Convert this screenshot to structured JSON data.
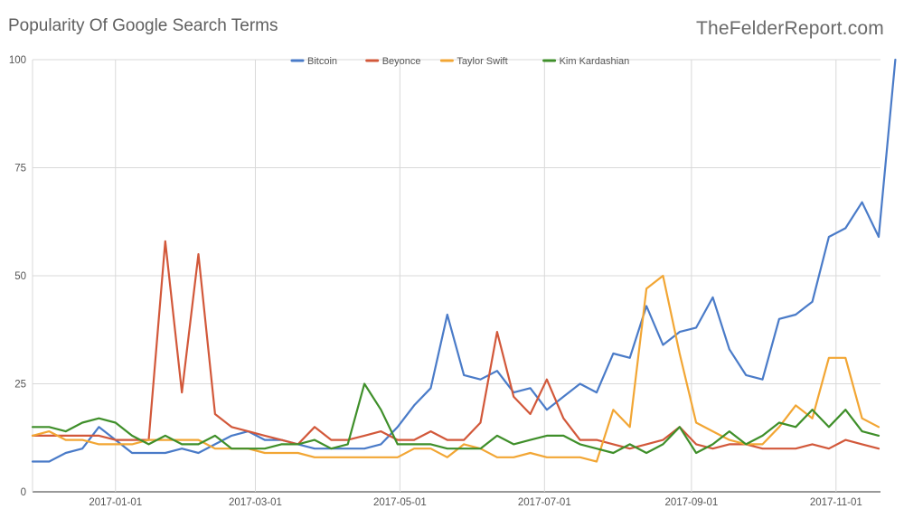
{
  "header": {
    "title": "Popularity Of Google Search Terms",
    "source": "TheFelderReport.com"
  },
  "chart_data": {
    "type": "line",
    "title": "Popularity Of Google Search Terms",
    "xlabel": "",
    "ylabel": "",
    "ylim": [
      0,
      100
    ],
    "yticks": [
      0,
      25,
      50,
      75,
      100
    ],
    "xtick_labels": [
      "2017-01-01",
      "2017-03-01",
      "2017-05-01",
      "2017-07-01",
      "2017-09-01",
      "2017-11-01"
    ],
    "x_start": "2016-11-27",
    "x_step_days": 7,
    "grid": true,
    "legend_position": "top-center",
    "series": [
      {
        "name": "Bitcoin",
        "color": "#4a7bc8",
        "values": [
          7,
          7,
          9,
          10,
          15,
          12,
          9,
          9,
          9,
          10,
          9,
          11,
          13,
          14,
          12,
          12,
          11,
          10,
          10,
          10,
          10,
          11,
          15,
          20,
          24,
          41,
          27,
          26,
          28,
          23,
          24,
          19,
          22,
          25,
          23,
          32,
          31,
          43,
          34,
          37,
          38,
          45,
          33,
          27,
          26,
          40,
          41,
          44,
          59,
          61,
          67,
          59,
          100
        ]
      },
      {
        "name": "Beyonce",
        "color": "#d2583a",
        "values": [
          13,
          13,
          13,
          13,
          13,
          12,
          12,
          12,
          58,
          23,
          55,
          18,
          15,
          14,
          13,
          12,
          11,
          15,
          12,
          12,
          13,
          14,
          12,
          12,
          14,
          12,
          12,
          16,
          37,
          22,
          18,
          26,
          17,
          12,
          12,
          11,
          10,
          11,
          12,
          15,
          11,
          10,
          11,
          11,
          10,
          10,
          10,
          11,
          10,
          12,
          11,
          10
        ]
      },
      {
        "name": "Taylor Swift",
        "color": "#f2a634",
        "values": [
          13,
          14,
          12,
          12,
          11,
          11,
          11,
          12,
          12,
          12,
          12,
          10,
          10,
          10,
          9,
          9,
          9,
          8,
          8,
          8,
          8,
          8,
          8,
          10,
          10,
          8,
          11,
          10,
          8,
          8,
          9,
          8,
          8,
          8,
          7,
          19,
          15,
          47,
          50,
          32,
          16,
          14,
          12,
          11,
          11,
          15,
          20,
          17,
          31,
          31,
          17,
          15
        ]
      },
      {
        "name": "Kim Kardashian",
        "color": "#3f8f2a",
        "values": [
          15,
          15,
          14,
          16,
          17,
          16,
          13,
          11,
          13,
          11,
          11,
          13,
          10,
          10,
          10,
          11,
          11,
          12,
          10,
          11,
          25,
          19,
          11,
          11,
          11,
          10,
          10,
          10,
          13,
          11,
          12,
          13,
          13,
          11,
          10,
          9,
          11,
          9,
          11,
          15,
          9,
          11,
          14,
          11,
          13,
          16,
          15,
          19,
          15,
          19,
          14,
          13
        ]
      }
    ]
  }
}
